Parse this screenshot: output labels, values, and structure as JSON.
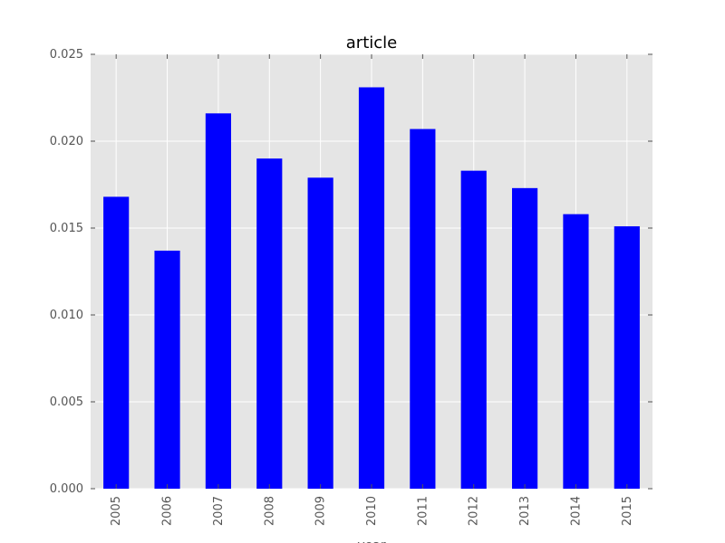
{
  "chart_data": {
    "type": "bar",
    "title": "article",
    "xlabel": "year",
    "ylabel": "",
    "categories": [
      "2005",
      "2006",
      "2007",
      "2008",
      "2009",
      "2010",
      "2011",
      "2012",
      "2013",
      "2014",
      "2015"
    ],
    "values": [
      0.0168,
      0.0137,
      0.0216,
      0.019,
      0.0179,
      0.0231,
      0.0207,
      0.0183,
      0.0173,
      0.0158,
      0.0151
    ],
    "ylim": [
      0,
      0.025
    ],
    "yticks": [
      "0.000",
      "0.005",
      "0.010",
      "0.015",
      "0.020",
      "0.025"
    ],
    "grid": true,
    "legend": "none"
  },
  "colors": {
    "bar": "#0000ff",
    "plot_background": "#e5e5e5",
    "grid": "#ffffff",
    "tick_label": "#555555"
  }
}
